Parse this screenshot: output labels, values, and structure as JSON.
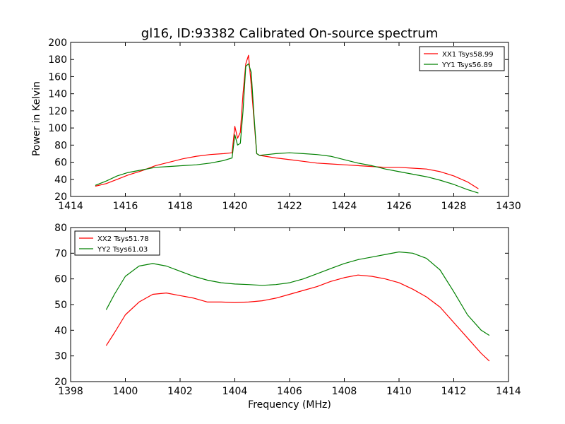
{
  "chart_data": [
    {
      "type": "line",
      "title": "gl16, ID:93382 Calibrated On-source spectrum",
      "xlabel": "",
      "ylabel": "Power in Kelvin",
      "xlim": [
        1414,
        1430
      ],
      "ylim": [
        20,
        200
      ],
      "xticks": [
        "1414",
        "1416",
        "1418",
        "1420",
        "1422",
        "1424",
        "1426",
        "1428",
        "1430"
      ],
      "yticks": [
        "20",
        "40",
        "60",
        "80",
        "100",
        "120",
        "140",
        "160",
        "180",
        "200"
      ],
      "legend_position": "top-right",
      "series": [
        {
          "name": "XX1 Tsys58.99",
          "color": "#ff0000",
          "x": [
            1414.9,
            1415.3,
            1415.7,
            1416.1,
            1416.6,
            1417.1,
            1417.6,
            1418.1,
            1418.6,
            1419.1,
            1419.6,
            1419.9,
            1420.0,
            1420.1,
            1420.2,
            1420.3,
            1420.4,
            1420.5,
            1420.6,
            1420.7,
            1420.8,
            1420.9,
            1421.5,
            1422.0,
            1422.5,
            1423.0,
            1423.5,
            1424.0,
            1424.5,
            1425.0,
            1425.5,
            1426.0,
            1426.5,
            1427.0,
            1427.5,
            1428.0,
            1428.5,
            1428.9
          ],
          "y": [
            32,
            35,
            40,
            45,
            50,
            56,
            60,
            64,
            67,
            69,
            70,
            71,
            102,
            88,
            95,
            140,
            175,
            185,
            150,
            110,
            70,
            68,
            65,
            63,
            61,
            59,
            58,
            57,
            56,
            55,
            54,
            54,
            53,
            52,
            49,
            44,
            37,
            29
          ]
        },
        {
          "name": "YY1 Tsys56.89",
          "color": "#008000",
          "x": [
            1414.9,
            1415.3,
            1415.7,
            1416.1,
            1416.6,
            1417.1,
            1417.6,
            1418.1,
            1418.6,
            1419.1,
            1419.6,
            1419.9,
            1420.0,
            1420.1,
            1420.2,
            1420.3,
            1420.4,
            1420.5,
            1420.6,
            1420.7,
            1420.8,
            1420.9,
            1421.5,
            1422.0,
            1422.5,
            1423.0,
            1423.5,
            1424.0,
            1424.5,
            1425.0,
            1425.5,
            1426.0,
            1426.5,
            1427.0,
            1427.5,
            1428.0,
            1428.5,
            1428.9
          ],
          "y": [
            33,
            38,
            44,
            48,
            51,
            54,
            55,
            56,
            57,
            59,
            62,
            65,
            92,
            80,
            82,
            120,
            172,
            175,
            165,
            115,
            70,
            68,
            70,
            71,
            70,
            69,
            67,
            63,
            59,
            56,
            52,
            49,
            46,
            43,
            39,
            34,
            28,
            24
          ]
        }
      ]
    },
    {
      "type": "line",
      "title": "",
      "xlabel": "Frequency (MHz)",
      "ylabel": "",
      "xlim": [
        1398,
        1414
      ],
      "ylim": [
        20,
        80
      ],
      "xticks": [
        "1398",
        "1400",
        "1402",
        "1404",
        "1406",
        "1408",
        "1410",
        "1412",
        "1414"
      ],
      "yticks": [
        "20",
        "30",
        "40",
        "50",
        "60",
        "70",
        "80"
      ],
      "legend_position": "top-left",
      "series": [
        {
          "name": "XX2 Tsys51.78",
          "color": "#ff0000",
          "x": [
            1399.3,
            1399.6,
            1400.0,
            1400.5,
            1401.0,
            1401.5,
            1402.0,
            1402.5,
            1403.0,
            1403.5,
            1404.0,
            1404.5,
            1405.0,
            1405.5,
            1406.0,
            1406.5,
            1407.0,
            1407.5,
            1408.0,
            1408.5,
            1409.0,
            1409.5,
            1410.0,
            1410.5,
            1411.0,
            1411.5,
            1412.0,
            1412.5,
            1413.0,
            1413.3
          ],
          "y": [
            34,
            39,
            46,
            51,
            54,
            54.5,
            53.5,
            52.5,
            51,
            51,
            50.8,
            51,
            51.5,
            52.5,
            54,
            55.5,
            57,
            59,
            60.5,
            61.5,
            61,
            60,
            58.5,
            56,
            53,
            49,
            43,
            37,
            31,
            28
          ]
        },
        {
          "name": "YY2 Tsys61.03",
          "color": "#008000",
          "x": [
            1399.3,
            1399.6,
            1400.0,
            1400.5,
            1401.0,
            1401.5,
            1402.0,
            1402.5,
            1403.0,
            1403.5,
            1404.0,
            1404.5,
            1405.0,
            1405.5,
            1406.0,
            1406.5,
            1407.0,
            1407.5,
            1408.0,
            1408.5,
            1409.0,
            1409.5,
            1410.0,
            1410.5,
            1411.0,
            1411.5,
            1412.0,
            1412.5,
            1413.0,
            1413.3
          ],
          "y": [
            48,
            54,
            61,
            65,
            66,
            65,
            63,
            61,
            59.5,
            58.5,
            58,
            57.8,
            57.5,
            57.8,
            58.5,
            60,
            62,
            64,
            66,
            67.5,
            68.5,
            69.5,
            70.5,
            70,
            68,
            63.5,
            55,
            46,
            40,
            38
          ]
        }
      ]
    }
  ]
}
